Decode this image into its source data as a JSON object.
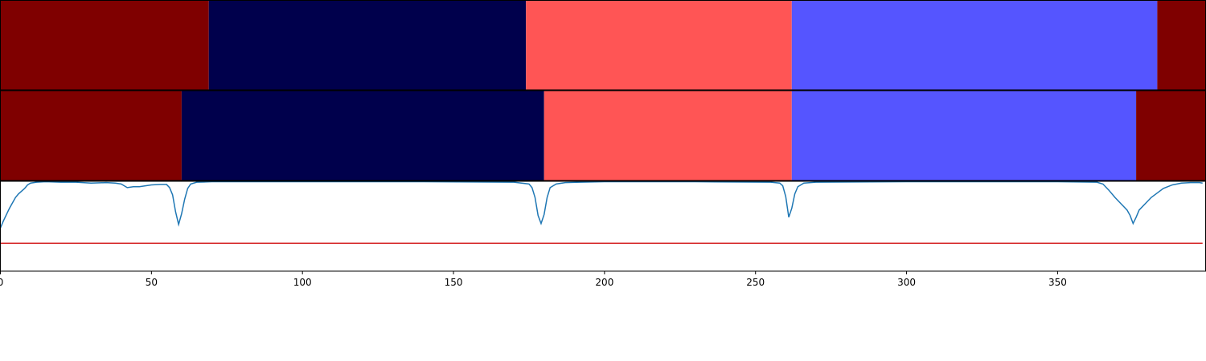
{
  "chart_data": {
    "type": "segmentation",
    "xlim": [
      0,
      399
    ],
    "x_ticks": [
      0,
      50,
      100,
      150,
      200,
      250,
      300,
      350
    ],
    "x_tick_labels": [
      "0",
      "50",
      "100",
      "150",
      "200",
      "250",
      "300",
      "350"
    ],
    "segment_rows": [
      {
        "segments": [
          {
            "start": 0,
            "end": 69,
            "color": "#7f0000"
          },
          {
            "start": 69,
            "end": 174,
            "color": "#00004c"
          },
          {
            "start": 174,
            "end": 262,
            "color": "#ff5555"
          },
          {
            "start": 262,
            "end": 383,
            "color": "#5555ff"
          },
          {
            "start": 383,
            "end": 399,
            "color": "#7f0000"
          }
        ]
      },
      {
        "segments": [
          {
            "start": 0,
            "end": 60,
            "color": "#7f0000"
          },
          {
            "start": 60,
            "end": 180,
            "color": "#00004c"
          },
          {
            "start": 180,
            "end": 262,
            "color": "#ff5555"
          },
          {
            "start": 262,
            "end": 376,
            "color": "#5555ff"
          },
          {
            "start": 376,
            "end": 399,
            "color": "#7f0000"
          }
        ]
      }
    ],
    "signal": {
      "color": "#1f77b4",
      "ylim": [
        0,
        1
      ],
      "points": [
        [
          0,
          0.48
        ],
        [
          1,
          0.56
        ],
        [
          2,
          0.63
        ],
        [
          3,
          0.7
        ],
        [
          4,
          0.76
        ],
        [
          5,
          0.82
        ],
        [
          6,
          0.86
        ],
        [
          7,
          0.89
        ],
        [
          8,
          0.92
        ],
        [
          9,
          0.96
        ],
        [
          10,
          0.98
        ],
        [
          12,
          0.99
        ],
        [
          15,
          0.995
        ],
        [
          20,
          0.99
        ],
        [
          25,
          0.99
        ],
        [
          30,
          0.98
        ],
        [
          35,
          0.985
        ],
        [
          38,
          0.98
        ],
        [
          40,
          0.97
        ],
        [
          42,
          0.93
        ],
        [
          44,
          0.94
        ],
        [
          46,
          0.94
        ],
        [
          48,
          0.95
        ],
        [
          50,
          0.96
        ],
        [
          53,
          0.965
        ],
        [
          55,
          0.965
        ],
        [
          56,
          0.93
        ],
        [
          57,
          0.85
        ],
        [
          58,
          0.66
        ],
        [
          59,
          0.52
        ],
        [
          60,
          0.64
        ],
        [
          61,
          0.8
        ],
        [
          62,
          0.92
        ],
        [
          63,
          0.97
        ],
        [
          65,
          0.99
        ],
        [
          70,
          0.995
        ],
        [
          100,
          0.995
        ],
        [
          140,
          0.995
        ],
        [
          170,
          0.99
        ],
        [
          175,
          0.97
        ],
        [
          176,
          0.93
        ],
        [
          177,
          0.82
        ],
        [
          178,
          0.62
        ],
        [
          179,
          0.53
        ],
        [
          180,
          0.63
        ],
        [
          181,
          0.82
        ],
        [
          182,
          0.93
        ],
        [
          184,
          0.97
        ],
        [
          187,
          0.985
        ],
        [
          192,
          0.99
        ],
        [
          200,
          0.995
        ],
        [
          230,
          0.995
        ],
        [
          255,
          0.99
        ],
        [
          258,
          0.98
        ],
        [
          259,
          0.95
        ],
        [
          260,
          0.83
        ],
        [
          261,
          0.6
        ],
        [
          262,
          0.7
        ],
        [
          263,
          0.86
        ],
        [
          264,
          0.94
        ],
        [
          266,
          0.98
        ],
        [
          270,
          0.99
        ],
        [
          300,
          0.995
        ],
        [
          350,
          0.995
        ],
        [
          363,
          0.99
        ],
        [
          365,
          0.97
        ],
        [
          367,
          0.9
        ],
        [
          369,
          0.82
        ],
        [
          371,
          0.75
        ],
        [
          373,
          0.68
        ],
        [
          374,
          0.62
        ],
        [
          375,
          0.53
        ],
        [
          376,
          0.6
        ],
        [
          377,
          0.68
        ],
        [
          379,
          0.75
        ],
        [
          381,
          0.82
        ],
        [
          383,
          0.87
        ],
        [
          385,
          0.92
        ],
        [
          388,
          0.96
        ],
        [
          391,
          0.98
        ],
        [
          394,
          0.985
        ],
        [
          397,
          0.985
        ],
        [
          398,
          0.98
        ]
      ]
    },
    "threshold": {
      "value": 0.31,
      "color": "#d62728"
    }
  }
}
